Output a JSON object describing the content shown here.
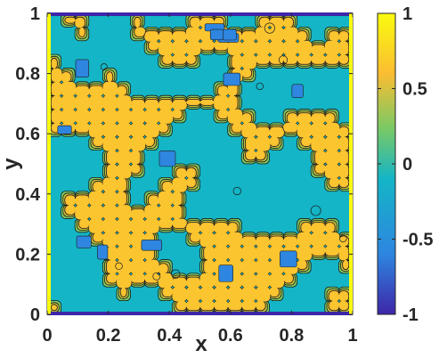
{
  "chart_data": {
    "type": "heatmap",
    "subtype": "filled-contour",
    "title": "",
    "xlabel": "x",
    "ylabel": "y",
    "xlim": [
      0,
      1
    ],
    "ylim": [
      0,
      1
    ],
    "xticks": [
      0,
      0.2,
      0.4,
      0.6,
      0.8,
      1
    ],
    "yticks": [
      0,
      0.2,
      0.4,
      0.6,
      0.8,
      1
    ],
    "xtick_labels": [
      "0",
      "0.2",
      "0.4",
      "0.6",
      "0.8",
      "1"
    ],
    "ytick_labels": [
      "0",
      "0.2",
      "0.4",
      "0.6",
      "0.8",
      "1"
    ],
    "colorbar": {
      "colormap": "parula",
      "limits": [
        -1,
        1
      ],
      "ticks": [
        1,
        0.5,
        0,
        -0.5,
        -1
      ],
      "tick_labels": [
        "1",
        "0.5",
        "0",
        "-0.5",
        "-1"
      ],
      "colors": [
        "#3e26a8",
        "#2e86e0",
        "#14b5c6",
        "#7bc964",
        "#fbbd32",
        "#f9fb0e"
      ]
    },
    "grid": false,
    "description_values": {
      "dominant_levels": [
        -0.05,
        0.85
      ],
      "field": "phase-separated labyrinth pattern, values mostly near 0 (teal) and near 1 (yellow)"
    }
  }
}
